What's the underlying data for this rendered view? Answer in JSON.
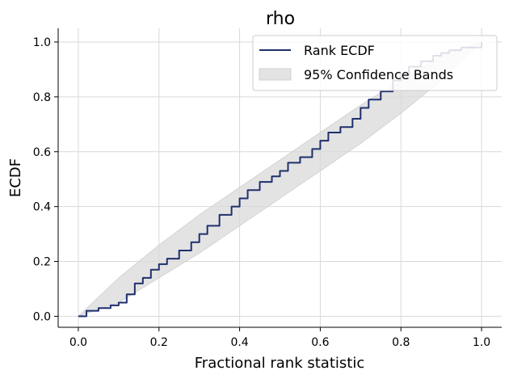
{
  "chart_data": {
    "type": "line",
    "title": "rho",
    "xlabel": "Fractional rank statistic",
    "ylabel": "ECDF",
    "xlim": [
      -0.05,
      1.05
    ],
    "ylim": [
      -0.04,
      1.05
    ],
    "xticks": [
      "0.0",
      "0.2",
      "0.4",
      "0.6",
      "0.8",
      "1.0"
    ],
    "yticks": [
      "0.0",
      "0.2",
      "0.4",
      "0.6",
      "0.8",
      "1.0"
    ],
    "grid": true,
    "legend_position": "top-right",
    "series": [
      {
        "name": "Rank ECDF",
        "color": "#1f2f6e",
        "x": [
          0.0,
          0.02,
          0.05,
          0.08,
          0.1,
          0.12,
          0.14,
          0.16,
          0.18,
          0.2,
          0.22,
          0.25,
          0.28,
          0.3,
          0.32,
          0.35,
          0.38,
          0.4,
          0.42,
          0.45,
          0.48,
          0.5,
          0.52,
          0.55,
          0.58,
          0.6,
          0.62,
          0.65,
          0.68,
          0.7,
          0.72,
          0.75,
          0.78,
          0.8,
          0.82,
          0.85,
          0.88,
          0.9,
          0.92,
          0.95,
          0.97,
          1.0
        ],
        "y": [
          0.0,
          0.02,
          0.03,
          0.04,
          0.05,
          0.08,
          0.12,
          0.14,
          0.17,
          0.19,
          0.21,
          0.24,
          0.27,
          0.3,
          0.33,
          0.37,
          0.4,
          0.43,
          0.46,
          0.49,
          0.51,
          0.53,
          0.56,
          0.58,
          0.61,
          0.64,
          0.67,
          0.69,
          0.72,
          0.76,
          0.79,
          0.82,
          0.86,
          0.88,
          0.91,
          0.93,
          0.95,
          0.96,
          0.97,
          0.98,
          0.98,
          1.0
        ]
      }
    ],
    "confidence_band": {
      "name": "95% Confidence Bands",
      "color": "#d9d9d9",
      "x": [
        0.0,
        0.1,
        0.2,
        0.3,
        0.4,
        0.5,
        0.6,
        0.7,
        0.8,
        0.9,
        1.0
      ],
      "lower": [
        0.0,
        0.05,
        0.14,
        0.23,
        0.33,
        0.43,
        0.53,
        0.63,
        0.74,
        0.86,
        1.0
      ],
      "upper": [
        0.0,
        0.14,
        0.26,
        0.37,
        0.47,
        0.57,
        0.67,
        0.77,
        0.86,
        0.95,
        1.0
      ]
    }
  }
}
